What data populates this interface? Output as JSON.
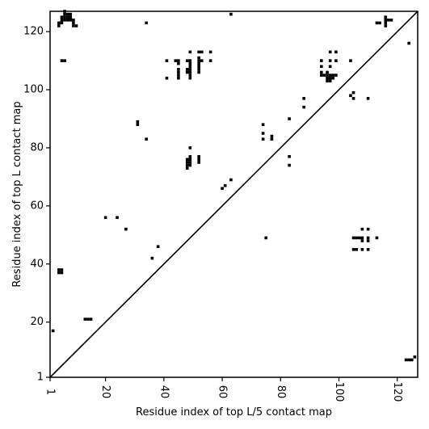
{
  "chart_data": {
    "type": "scatter",
    "title": "",
    "xlabel": "Residue index of top L/5 contact map",
    "ylabel": "Residue index of top L contact map",
    "xlim": [
      1,
      127
    ],
    "ylim": [
      1,
      127
    ],
    "xticks": [
      1,
      20,
      40,
      60,
      80,
      100,
      120
    ],
    "yticks": [
      1,
      20,
      40,
      60,
      80,
      100,
      120
    ],
    "grid": false,
    "legend": "none",
    "marker_color": "#000000",
    "diagonal_line": true,
    "series": [
      {
        "points": [
          [
            4,
            122
          ],
          [
            4,
            123
          ],
          [
            5,
            123
          ],
          [
            5,
            124
          ],
          [
            5,
            125
          ],
          [
            6,
            124
          ],
          [
            6,
            125
          ],
          [
            6,
            126
          ],
          [
            6,
            127
          ],
          [
            7,
            124
          ],
          [
            7,
            125
          ],
          [
            7,
            126
          ],
          [
            8,
            124
          ],
          [
            8,
            125
          ],
          [
            8,
            126
          ],
          [
            9,
            123
          ],
          [
            9,
            124
          ],
          [
            10,
            122
          ],
          [
            9,
            122
          ],
          [
            34,
            123
          ],
          [
            63,
            126
          ],
          [
            113,
            123
          ],
          [
            114,
            123
          ],
          [
            116,
            122
          ],
          [
            116,
            123
          ],
          [
            116,
            124
          ],
          [
            116,
            125
          ],
          [
            117,
            124
          ],
          [
            118,
            124
          ],
          [
            124,
            116
          ],
          [
            5,
            110
          ],
          [
            6,
            110
          ],
          [
            41,
            110
          ],
          [
            41,
            104
          ],
          [
            44,
            110
          ],
          [
            45,
            110
          ],
          [
            45,
            109
          ],
          [
            45,
            107
          ],
          [
            45,
            106
          ],
          [
            45,
            105
          ],
          [
            45,
            104
          ],
          [
            48,
            110
          ],
          [
            48,
            107
          ],
          [
            48,
            106
          ],
          [
            49,
            110
          ],
          [
            49,
            109
          ],
          [
            49,
            108
          ],
          [
            49,
            107
          ],
          [
            49,
            106
          ],
          [
            49,
            105
          ],
          [
            49,
            104
          ],
          [
            49,
            113
          ],
          [
            52,
            113
          ],
          [
            52,
            111
          ],
          [
            52,
            110
          ],
          [
            52,
            109
          ],
          [
            52,
            108
          ],
          [
            52,
            107
          ],
          [
            52,
            106
          ],
          [
            53,
            113
          ],
          [
            53,
            110
          ],
          [
            56,
            113
          ],
          [
            56,
            110
          ],
          [
            94,
            110
          ],
          [
            94,
            108
          ],
          [
            94,
            106
          ],
          [
            94,
            105
          ],
          [
            95,
            105
          ],
          [
            96,
            106
          ],
          [
            96,
            105
          ],
          [
            96,
            104
          ],
          [
            96,
            103
          ],
          [
            97,
            113
          ],
          [
            97,
            110
          ],
          [
            97,
            108
          ],
          [
            97,
            105
          ],
          [
            97,
            104
          ],
          [
            97,
            103
          ],
          [
            98,
            105
          ],
          [
            98,
            104
          ],
          [
            99,
            113
          ],
          [
            99,
            110
          ],
          [
            99,
            105
          ],
          [
            104,
            110
          ],
          [
            104,
            98
          ],
          [
            105,
            99
          ],
          [
            105,
            97
          ],
          [
            110,
            97
          ],
          [
            88,
            97
          ],
          [
            88,
            94
          ],
          [
            31,
            89
          ],
          [
            31,
            88
          ],
          [
            34,
            83
          ],
          [
            74,
            88
          ],
          [
            74,
            85
          ],
          [
            74,
            83
          ],
          [
            77,
            84
          ],
          [
            77,
            83
          ],
          [
            83,
            90
          ],
          [
            83,
            77
          ],
          [
            83,
            74
          ],
          [
            49,
            80
          ],
          [
            48,
            76
          ],
          [
            48,
            75
          ],
          [
            48,
            74
          ],
          [
            48,
            73
          ],
          [
            49,
            77
          ],
          [
            49,
            76
          ],
          [
            49,
            75
          ],
          [
            49,
            74
          ],
          [
            52,
            77
          ],
          [
            52,
            76
          ],
          [
            52,
            75
          ],
          [
            63,
            69
          ],
          [
            60,
            66
          ],
          [
            61,
            67
          ],
          [
            20,
            56
          ],
          [
            24,
            56
          ],
          [
            27,
            52
          ],
          [
            38,
            46
          ],
          [
            36,
            42
          ],
          [
            75,
            49
          ],
          [
            105,
            49
          ],
          [
            106,
            49
          ],
          [
            107,
            49
          ],
          [
            108,
            49
          ],
          [
            108,
            48
          ],
          [
            108,
            52
          ],
          [
            110,
            52
          ],
          [
            110,
            49
          ],
          [
            110,
            48
          ],
          [
            113,
            49
          ],
          [
            105,
            45
          ],
          [
            106,
            45
          ],
          [
            108,
            45
          ],
          [
            110,
            45
          ],
          [
            4,
            38
          ],
          [
            4,
            37
          ],
          [
            5,
            38
          ],
          [
            5,
            37
          ],
          [
            13,
            21
          ],
          [
            14,
            21
          ],
          [
            15,
            21
          ],
          [
            2,
            17
          ],
          [
            123,
            7
          ],
          [
            124,
            7
          ],
          [
            125,
            7
          ],
          [
            126,
            8
          ]
        ]
      }
    ]
  }
}
